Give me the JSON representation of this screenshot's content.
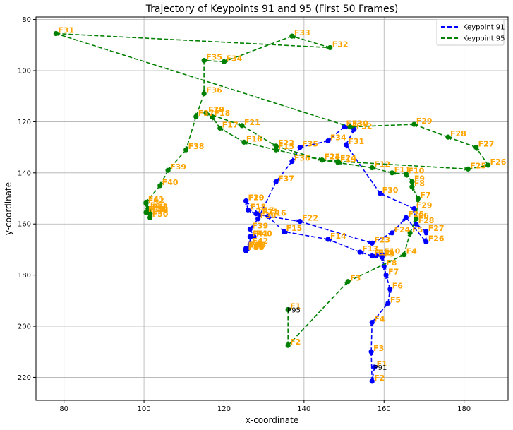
{
  "chart_data": {
    "type": "line",
    "title": "Trajectory of Keypoints 91 and 95 (First 50 Frames)",
    "xlabel": "x-coordinate",
    "ylabel": "y-coordinate",
    "xlim": [
      73,
      191
    ],
    "ylim": [
      229,
      79
    ],
    "y_inverted": true,
    "xticks": [
      80,
      100,
      120,
      140,
      160,
      180
    ],
    "yticks": [
      80,
      100,
      120,
      140,
      160,
      180,
      200,
      220
    ],
    "grid": true,
    "legend_position": "top-right",
    "frame_label_color": "#FFA500",
    "series": [
      {
        "name": "Keypoint 91",
        "color": "#0000FF",
        "linestyle": "dashed",
        "start_label": "P91",
        "labels": [
          "F1",
          "F2",
          "F3",
          "F4",
          "F5",
          "F6",
          "F7",
          "F8",
          "F9",
          "F10",
          "F11",
          "F12",
          "F13",
          "F14",
          "F15",
          "F16",
          "F17",
          "F18",
          "F19",
          "F20",
          "F21",
          "F22",
          "F23",
          "F24",
          "F25",
          "F26",
          "F27",
          "F28",
          "F29",
          "F30",
          "F31",
          "F32",
          "F33",
          "F34",
          "F35",
          "F36",
          "F37",
          "F38",
          "F39",
          "F40",
          "F41",
          "F42",
          "F43",
          "F44",
          "F45",
          "F46",
          "F47",
          "F48",
          "F49",
          "F50"
        ],
        "x": [
          157.6,
          157,
          156.8,
          157,
          161,
          161.5,
          160.5,
          160,
          159.5,
          159.5,
          158,
          157,
          154,
          146,
          135,
          131,
          128,
          126,
          125.5,
          125.5,
          129,
          139,
          157,
          162,
          165.5,
          170.5,
          170.5,
          168,
          167.5,
          159,
          150.5,
          152.5,
          150,
          146,
          139,
          137,
          133,
          128.5,
          126.5,
          127.5,
          126.5,
          126.5,
          126,
          125.5,
          125.5,
          125.5,
          125.5,
          125.5,
          125.5,
          125.5
        ],
        "y": [
          216,
          221.5,
          210,
          198.5,
          191,
          185.5,
          180,
          176.5,
          173,
          172,
          172.5,
          172.5,
          171,
          166,
          163,
          157,
          156,
          154.5,
          151,
          151,
          156.5,
          159,
          167.5,
          163.5,
          157.5,
          167,
          163,
          160,
          154,
          148,
          129,
          123,
          122,
          127.5,
          130,
          135.5,
          143.5,
          158,
          162,
          165,
          165,
          168,
          169.5,
          169.5,
          170,
          170,
          170.5,
          170.5,
          170.5,
          170.5
        ]
      },
      {
        "name": "Keypoint 95",
        "color": "#008000",
        "linestyle": "dashed",
        "start_label": "P95",
        "labels": [
          "F1",
          "F2",
          "F3",
          "F4",
          "F5",
          "F6",
          "F7",
          "F8",
          "F9",
          "F10",
          "F11",
          "F12",
          "F13",
          "F14",
          "F15",
          "F16",
          "F17",
          "F18",
          "F19",
          "F20",
          "F21",
          "F22",
          "F23",
          "F24",
          "F25",
          "F26",
          "F27",
          "F28",
          "F29",
          "F30",
          "F31",
          "F32",
          "F33",
          "F34",
          "F35",
          "F36",
          "F37",
          "F38",
          "F39",
          "F40",
          "F41",
          "F42",
          "F43",
          "F44",
          "F45",
          "F46",
          "F47",
          "F48",
          "F49",
          "F50"
        ],
        "x": [
          136,
          136,
          151,
          165,
          166.5,
          168,
          168.5,
          167,
          167,
          165.5,
          162,
          157,
          148.5,
          144.5,
          133,
          125,
          119,
          117,
          115.5,
          115.5,
          124.5,
          133,
          144.5,
          148.5,
          181,
          186,
          183,
          176,
          167.5,
          151.5,
          78,
          146.5,
          137,
          120,
          115,
          115,
          113,
          110.5,
          106,
          104,
          100.5,
          100.5,
          101,
          101.5,
          100.5,
          101,
          101.5,
          101.5,
          101.5,
          101.5
        ],
        "y": [
          193.5,
          207.5,
          182.5,
          172,
          163.5,
          158,
          150,
          145.5,
          143.5,
          140.5,
          140,
          138,
          136,
          135,
          131,
          128,
          122.5,
          118,
          116.5,
          116.5,
          121.5,
          129.5,
          135,
          135.5,
          138.5,
          137,
          130,
          126,
          121,
          122,
          85.5,
          91,
          86.5,
          96.5,
          96,
          109,
          118,
          131,
          139,
          145,
          151.5,
          152,
          154,
          154.5,
          155.5,
          155.5,
          156,
          156,
          156,
          157.5
        ]
      }
    ]
  }
}
